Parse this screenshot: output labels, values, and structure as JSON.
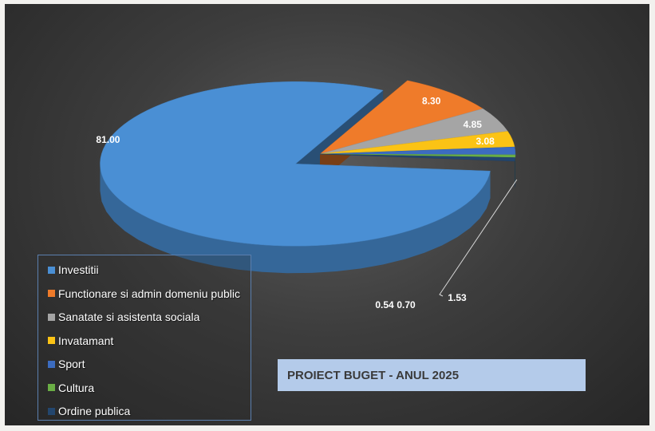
{
  "chart_data": {
    "type": "pie",
    "title": "PROIECT BUGET - ANUL 2025",
    "slices": [
      {
        "label": "Investitii",
        "value": 81.0,
        "display": "81.00",
        "color": "#4a8fd4"
      },
      {
        "label": "Functionare si admin domeniu public",
        "value": 8.3,
        "display": "8.30",
        "color": "#ef7b2a"
      },
      {
        "label": "Sanatate si asistenta sociala",
        "value": 4.85,
        "display": "4.85",
        "color": "#a5a5a5"
      },
      {
        "label": "Invatamant",
        "value": 3.08,
        "display": "3.08",
        "color": "#fbc315"
      },
      {
        "label": "Sport",
        "value": 1.53,
        "display": "1.53",
        "color": "#3c6cc0"
      },
      {
        "label": "Cultura",
        "value": 0.54,
        "display": "0.54",
        "color": "#6aae45"
      },
      {
        "label": "Ordine publica",
        "value": 0.7,
        "display": "0.70",
        "color": "#23466e"
      }
    ],
    "legend_position": "bottom-left",
    "exploded": "Investitii",
    "style": "3d"
  }
}
